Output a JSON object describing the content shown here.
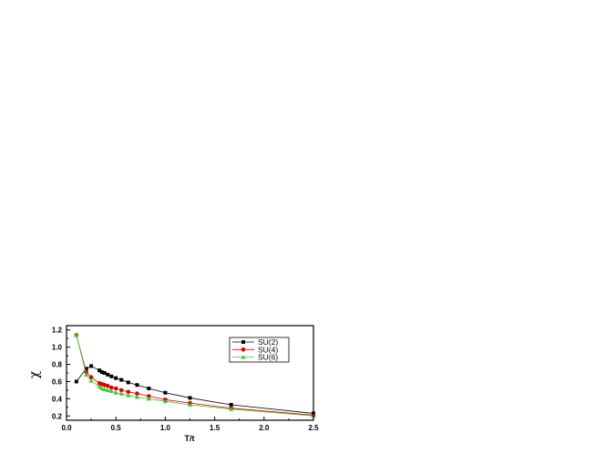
{
  "chart_data": {
    "type": "line",
    "xlabel": "T/t",
    "ylabel": "χ",
    "xlim": [
      0.0,
      2.5
    ],
    "ylim": [
      0.15,
      1.25
    ],
    "xticks": [
      0.0,
      0.5,
      1.0,
      1.5,
      2.0,
      2.5
    ],
    "xtick_labels": [
      "0.0",
      "0.5",
      "1.0",
      "1.5",
      "2.0",
      "2.5"
    ],
    "yticks": [
      0.2,
      0.4,
      0.6,
      0.8,
      1.0,
      1.2
    ],
    "ytick_labels": [
      "0.2",
      "0.4",
      "0.6",
      "0.8",
      "1.0",
      "1.2"
    ],
    "grid": false,
    "legend_position": "top-right",
    "series": [
      {
        "name": "SU(2)",
        "color": "#000000",
        "marker": "square",
        "x": [
          0.1,
          0.2,
          0.25,
          0.3333,
          0.3571,
          0.3846,
          0.4167,
          0.4545,
          0.5,
          0.5556,
          0.625,
          0.7143,
          0.8333,
          1.0,
          1.25,
          1.6667,
          2.5
        ],
        "y": [
          0.6,
          0.75,
          0.78,
          0.73,
          0.71,
          0.7,
          0.68,
          0.66,
          0.64,
          0.62,
          0.59,
          0.56,
          0.52,
          0.47,
          0.41,
          0.33,
          0.23
        ]
      },
      {
        "name": "SU(4)",
        "color": "#e00000",
        "marker": "circle",
        "x": [
          0.1,
          0.2,
          0.25,
          0.3333,
          0.3571,
          0.3846,
          0.4167,
          0.4545,
          0.5,
          0.5556,
          0.625,
          0.7143,
          0.8333,
          1.0,
          1.25,
          1.6667,
          2.5
        ],
        "y": [
          1.14,
          0.71,
          0.65,
          0.58,
          0.57,
          0.56,
          0.55,
          0.53,
          0.52,
          0.5,
          0.48,
          0.46,
          0.43,
          0.39,
          0.35,
          0.29,
          0.21
        ]
      },
      {
        "name": "SU(6)",
        "color": "#33cc33",
        "marker": "triangle",
        "x": [
          0.1,
          0.2,
          0.25,
          0.3333,
          0.3571,
          0.3846,
          0.4167,
          0.4545,
          0.5,
          0.5556,
          0.625,
          0.7143,
          0.8333,
          1.0,
          1.25,
          1.6667,
          2.5
        ],
        "y": [
          1.14,
          0.68,
          0.61,
          0.54,
          0.52,
          0.51,
          0.5,
          0.49,
          0.47,
          0.46,
          0.44,
          0.42,
          0.4,
          0.37,
          0.33,
          0.28,
          0.2
        ]
      }
    ]
  }
}
